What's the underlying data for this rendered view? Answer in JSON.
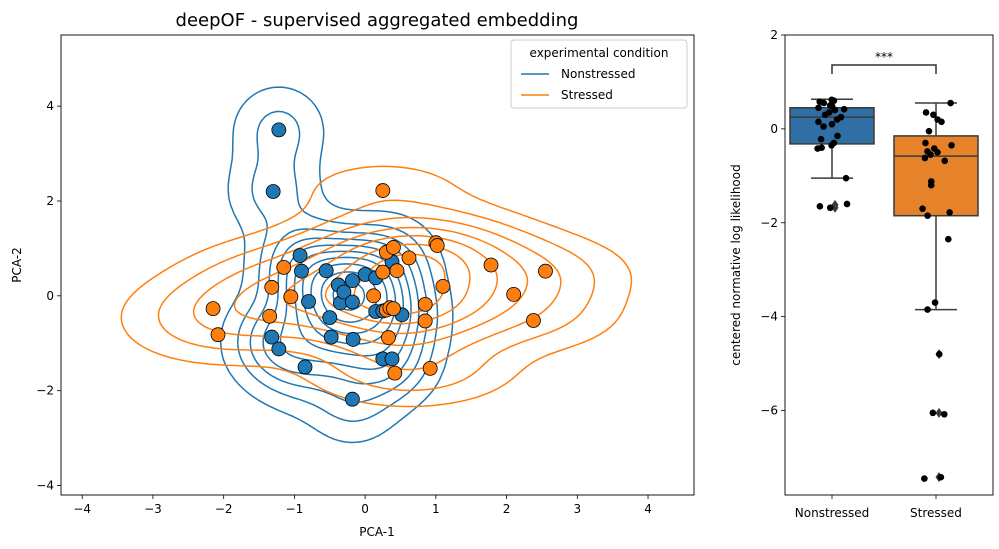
{
  "chart_data": [
    {
      "type": "scatter",
      "title": "deepOF - supervised aggregated embedding",
      "xlabel": "PCA-1",
      "ylabel": "PCA-2",
      "xlim": [
        -4.3,
        4.65
      ],
      "ylim": [
        -4.2,
        5.5
      ],
      "xticks": [
        "−4",
        "−3",
        "−2",
        "−1",
        "0",
        "1",
        "2",
        "3",
        "4"
      ],
      "yticks": [
        "−4",
        "−2",
        "0",
        "2",
        "4"
      ],
      "grid": false,
      "legend": {
        "title": "experimental condition",
        "placement": "top-right",
        "entries": [
          "Nonstressed",
          "Stressed"
        ]
      },
      "series": [
        {
          "name": "Nonstressed",
          "color": "#1f77b4",
          "points": [
            [
              -1.22,
              3.5
            ],
            [
              -1.3,
              2.2
            ],
            [
              -0.92,
              0.85
            ],
            [
              -0.9,
              0.52
            ],
            [
              -0.8,
              -0.12
            ],
            [
              -0.55,
              0.53
            ],
            [
              -0.5,
              -0.46
            ],
            [
              -0.48,
              -0.87
            ],
            [
              -0.38,
              0.23
            ],
            [
              -0.35,
              -0.15
            ],
            [
              -0.3,
              0.08
            ],
            [
              -0.18,
              -0.13
            ],
            [
              -0.18,
              0.32
            ],
            [
              -0.17,
              -0.92
            ],
            [
              -0.18,
              -2.18
            ],
            [
              0.0,
              0.45
            ],
            [
              0.15,
              0.38
            ],
            [
              0.15,
              -0.33
            ],
            [
              0.25,
              -0.32
            ],
            [
              0.25,
              -1.33
            ],
            [
              0.38,
              0.72
            ],
            [
              0.38,
              -1.33
            ],
            [
              0.52,
              -0.4
            ],
            [
              -1.32,
              -0.87
            ],
            [
              -1.22,
              -1.12
            ],
            [
              -0.85,
              -1.5
            ]
          ]
        },
        {
          "name": "Stressed",
          "color": "#ff7f0e",
          "points": [
            [
              0.25,
              2.22
            ],
            [
              0.3,
              0.92
            ],
            [
              0.4,
              1.02
            ],
            [
              0.25,
              0.5
            ],
            [
              0.45,
              0.53
            ],
            [
              0.62,
              0.8
            ],
            [
              1.0,
              1.12
            ],
            [
              1.02,
              1.06
            ],
            [
              1.1,
              0.2
            ],
            [
              0.12,
              0.0
            ],
            [
              0.3,
              -0.3
            ],
            [
              0.35,
              -0.25
            ],
            [
              0.4,
              -0.27
            ],
            [
              0.85,
              -0.18
            ],
            [
              0.85,
              -0.53
            ],
            [
              0.92,
              -1.53
            ],
            [
              0.33,
              -0.88
            ],
            [
              0.42,
              -1.63
            ],
            [
              1.78,
              0.65
            ],
            [
              2.1,
              0.03
            ],
            [
              2.55,
              0.52
            ],
            [
              2.38,
              -0.52
            ],
            [
              -1.32,
              0.18
            ],
            [
              -1.15,
              0.6
            ],
            [
              -1.05,
              -0.02
            ],
            [
              -1.35,
              -0.43
            ],
            [
              -2.15,
              -0.27
            ],
            [
              -2.08,
              -0.82
            ]
          ]
        }
      ],
      "contours": "kernel density estimate contours per condition"
    },
    {
      "type": "box",
      "title": "",
      "xlabel": "",
      "ylabel": "centered normative log likelihood",
      "ylim": [
        -7.8,
        2.0
      ],
      "yticks": [
        "−6",
        "−4",
        "−2",
        "0",
        "2"
      ],
      "categories": [
        "Nonstressed",
        "Stressed"
      ],
      "significance": "***",
      "boxes": [
        {
          "name": "Nonstressed",
          "color": "#2f6fa5",
          "q1": -0.32,
          "median": 0.25,
          "q3": 0.45,
          "whisker_low": -1.05,
          "whisker_high": 0.63,
          "outliers": [
            -1.62,
            -1.68
          ]
        },
        {
          "name": "Stressed",
          "color": "#e6822a",
          "q1": -1.85,
          "median": -0.58,
          "q3": -0.15,
          "whisker_low": -3.85,
          "whisker_high": 0.55,
          "outliers": [
            -4.8,
            -6.05,
            -7.42
          ]
        }
      ],
      "jitter": [
        {
          "category": "Nonstressed",
          "values": [
            0.62,
            0.6,
            0.58,
            0.55,
            0.5,
            0.48,
            0.45,
            0.42,
            0.4,
            0.35,
            0.3,
            0.25,
            0.2,
            0.15,
            0.1,
            0.05,
            -0.15,
            -0.22,
            -0.3,
            -0.35,
            -0.4,
            -0.42,
            -1.05,
            -1.6,
            -1.65,
            -1.68
          ]
        },
        {
          "category": "Stressed",
          "values": [
            0.55,
            0.35,
            0.3,
            0.2,
            0.15,
            -0.05,
            -0.3,
            -0.35,
            -0.42,
            -0.48,
            -0.5,
            -0.55,
            -0.62,
            -0.68,
            -1.12,
            -1.2,
            -1.7,
            -1.78,
            -1.85,
            -2.35,
            -3.7,
            -3.85,
            -4.8,
            -6.05,
            -6.08,
            -7.42,
            -7.45
          ]
        }
      ]
    }
  ]
}
